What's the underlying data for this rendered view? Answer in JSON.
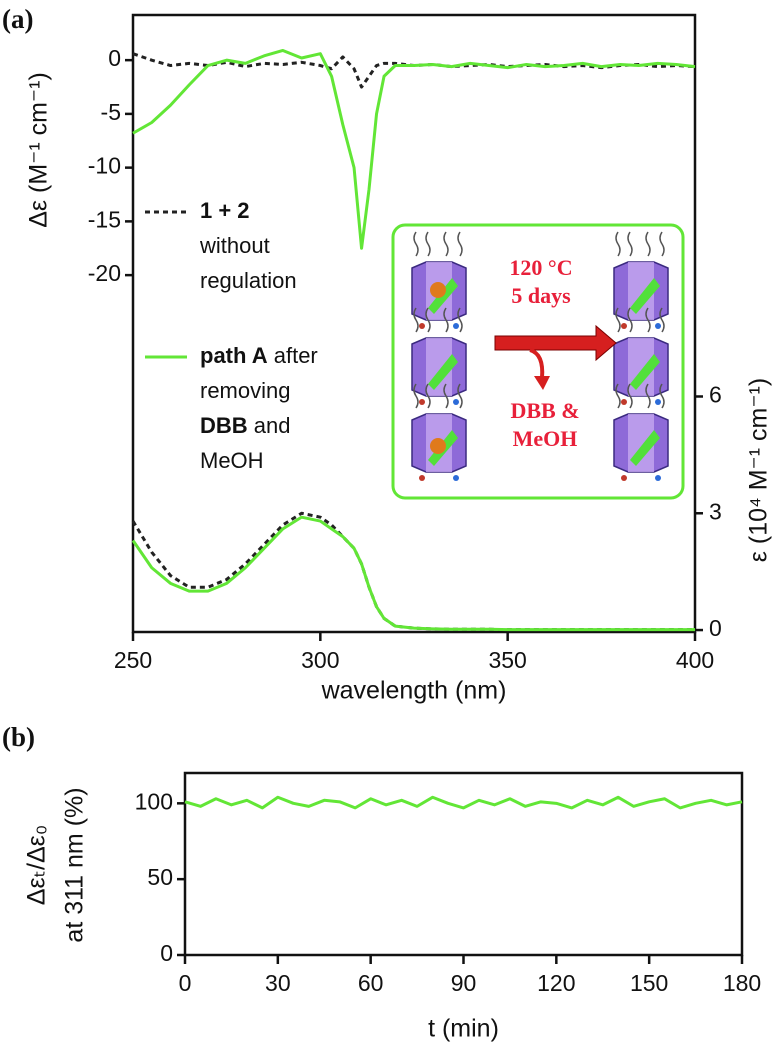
{
  "chart_data": [
    {
      "type": "line",
      "panel_label": "(a)",
      "x_label": "wavelength (nm)",
      "y_label": "Δε (M⁻¹ cm⁻¹)",
      "y2_label": "ε (10⁴ M⁻¹ cm⁻¹)",
      "x": [
        250,
        255,
        260,
        265,
        270,
        275,
        280,
        285,
        290,
        295,
        300,
        303,
        306,
        309,
        311,
        313,
        315,
        317,
        320,
        325,
        330,
        335,
        340,
        345,
        350,
        355,
        360,
        365,
        370,
        375,
        380,
        385,
        390,
        395,
        400
      ],
      "xlim": [
        250,
        400
      ],
      "xticks": [
        250,
        300,
        350,
        400
      ],
      "ylim": [
        -53.2,
        4.2
      ],
      "yticks": [
        0,
        -5,
        -10,
        -15,
        -20
      ],
      "y2lim": [
        -0.05,
        15.8
      ],
      "y2ticks": [
        0,
        3,
        6
      ],
      "series": [
        {
          "legend": [
            [
              {
                "text": "1 + 2",
                "bold": true
              }
            ],
            [
              {
                "text": "without"
              }
            ],
            [
              {
                "text": "regulation"
              }
            ]
          ],
          "color": "#222222",
          "dash": true,
          "values": [
            0.6,
            0,
            -0.5,
            -0.3,
            -0.5,
            -0.2,
            -0.6,
            -0.3,
            -0.4,
            -0.2,
            -0.5,
            -0.8,
            0.3,
            -0.8,
            -2.5,
            -1.5,
            -0.5,
            -0.3,
            -0.3,
            -0.5,
            -0.4,
            -0.6,
            -0.5,
            -0.4,
            -0.6,
            -0.5,
            -0.4,
            -0.6,
            -0.5,
            -0.7,
            -0.5,
            -0.4,
            -0.6,
            -0.5,
            -0.6
          ]
        },
        {
          "legend": [
            [
              {
                "text": "path A",
                "bold": true
              },
              {
                "text": " after"
              }
            ],
            [
              {
                "text": "removing"
              }
            ],
            [
              {
                "text": "DBB",
                "bold": true
              },
              {
                "text": " and"
              }
            ],
            [
              {
                "text": "MeOH"
              }
            ]
          ],
          "color": "#62e636",
          "dash": false,
          "values": [
            -6.8,
            -5.8,
            -4.2,
            -2.3,
            -0.5,
            0,
            -0.3,
            0.4,
            0.9,
            0.2,
            0.6,
            -1.5,
            -6,
            -10,
            -17.5,
            -12,
            -5,
            -1.5,
            -0.5,
            -0.5,
            -0.4,
            -0.6,
            -0.3,
            -0.5,
            -0.7,
            -0.4,
            -0.6,
            -0.5,
            -0.3,
            -0.6,
            -0.4,
            -0.5,
            -0.3,
            -0.4,
            -0.6
          ]
        },
        {
          "axis": "y2",
          "color": "#222222",
          "dash": true,
          "values": [
            2.8,
            2.0,
            1.4,
            1.1,
            1.1,
            1.3,
            1.7,
            2.2,
            2.7,
            3.0,
            2.9,
            2.7,
            2.4,
            2.1,
            1.7,
            1.1,
            0.6,
            0.3,
            0.1,
            0.05,
            0.03,
            0.02,
            0.02,
            0.02,
            0.01,
            0.01,
            0.01,
            0.01,
            0.01,
            0.01,
            0.01,
            0.01,
            0.01,
            0.01,
            0.01
          ]
        },
        {
          "axis": "y2",
          "color": "#62e636",
          "dash": false,
          "values": [
            2.3,
            1.6,
            1.2,
            1.0,
            1.0,
            1.2,
            1.6,
            2.1,
            2.6,
            2.9,
            2.8,
            2.6,
            2.4,
            2.1,
            1.7,
            1.1,
            0.6,
            0.3,
            0.1,
            0.05,
            0.03,
            0.02,
            0.02,
            0.02,
            0.01,
            0.01,
            0.01,
            0.01,
            0.01,
            0.01,
            0.01,
            0.01,
            0.01,
            0.01,
            0.01
          ]
        }
      ],
      "inset": {
        "lines": [
          "120 °C",
          "5 days",
          "DBB &",
          "MeOH"
        ],
        "color": "#62e636"
      }
    },
    {
      "type": "line",
      "panel_label": "(b)",
      "x_label": "t (min)",
      "y_label": [
        "Δεₜ/Δε₀",
        "at 311 nm (%)"
      ],
      "x": [
        0,
        5,
        10,
        15,
        20,
        25,
        30,
        35,
        40,
        45,
        50,
        55,
        60,
        65,
        70,
        75,
        80,
        85,
        90,
        95,
        100,
        105,
        110,
        115,
        120,
        125,
        130,
        135,
        140,
        145,
        150,
        155,
        160,
        165,
        170,
        175,
        180
      ],
      "xlim": [
        0,
        180
      ],
      "xticks": [
        0,
        30,
        60,
        90,
        120,
        150,
        180
      ],
      "ylim": [
        0,
        120
      ],
      "yticks": [
        0,
        50,
        100
      ],
      "series": [
        {
          "color": "#62e636",
          "dash": false,
          "values": [
            101,
            98,
            103,
            99,
            102,
            97,
            104,
            100,
            98,
            102,
            101,
            97,
            103,
            99,
            102,
            98,
            104,
            100,
            97,
            102,
            99,
            103,
            98,
            101,
            100,
            97,
            102,
            99,
            104,
            98,
            101,
            103,
            97,
            100,
            102,
            99,
            101
          ]
        }
      ]
    }
  ]
}
